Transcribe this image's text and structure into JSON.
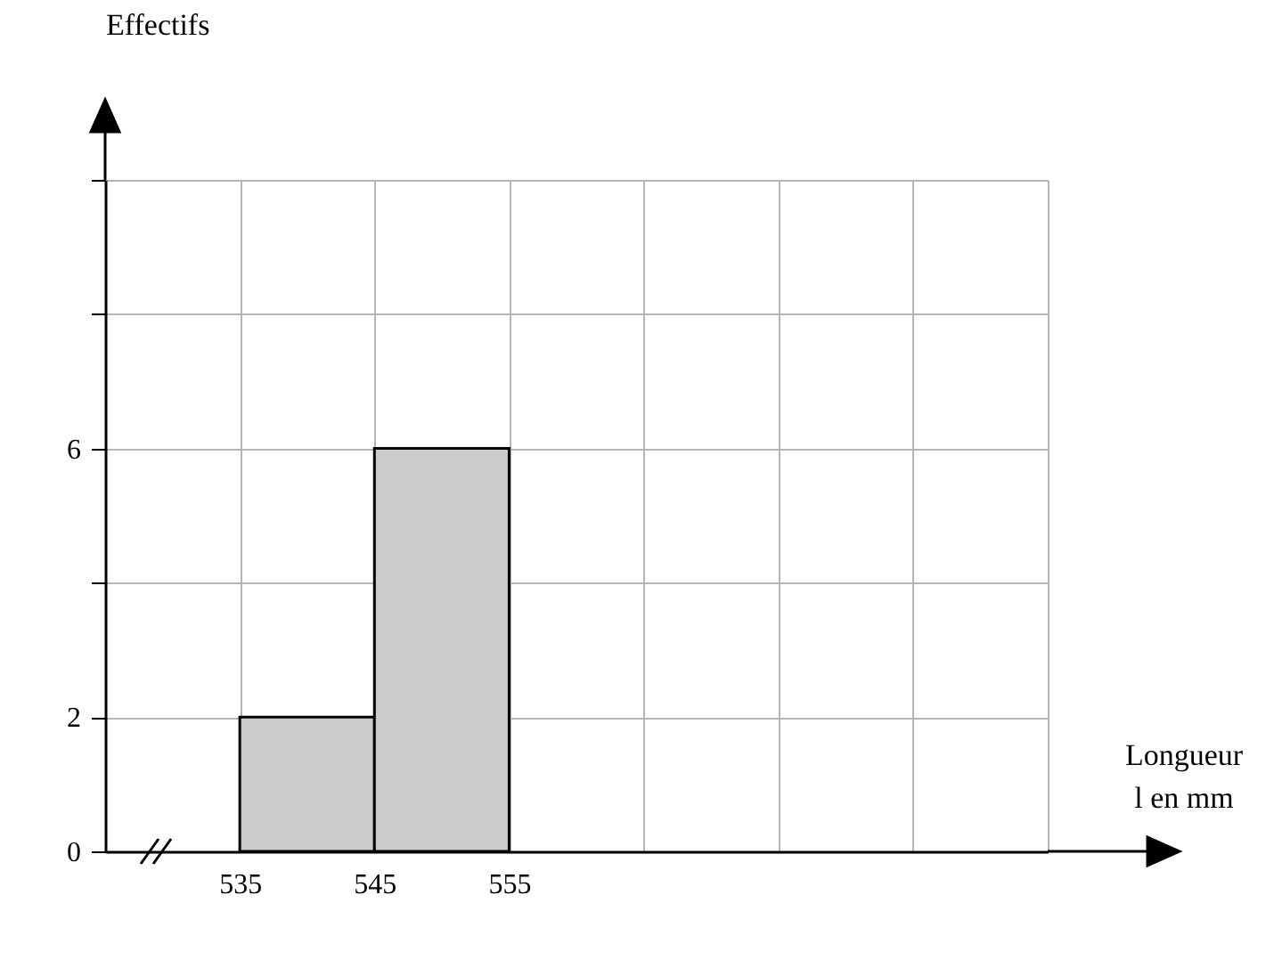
{
  "chart_data": {
    "type": "histogram",
    "xlabel": "Longueur l en mm",
    "ylabel": "Effectifs",
    "bins": [
      535,
      545,
      555
    ],
    "values": [
      2,
      6
    ],
    "color": "#cccccc",
    "xlim": [
      525,
      595
    ],
    "xticks": [
      535,
      545,
      555,
      {
        "value": 565,
        "label": null
      },
      {
        "value": 575,
        "label": null
      },
      {
        "value": 585,
        "label": null
      },
      {
        "value": 595,
        "label": null
      }
    ],
    "ylim": [
      0,
      10
    ],
    "yticks": [
      0,
      2,
      {
        "value": 4,
        "label": null
      },
      6,
      {
        "value": 8,
        "label": null
      },
      {
        "value": 10,
        "label": null
      }
    ],
    "grid": true
  }
}
